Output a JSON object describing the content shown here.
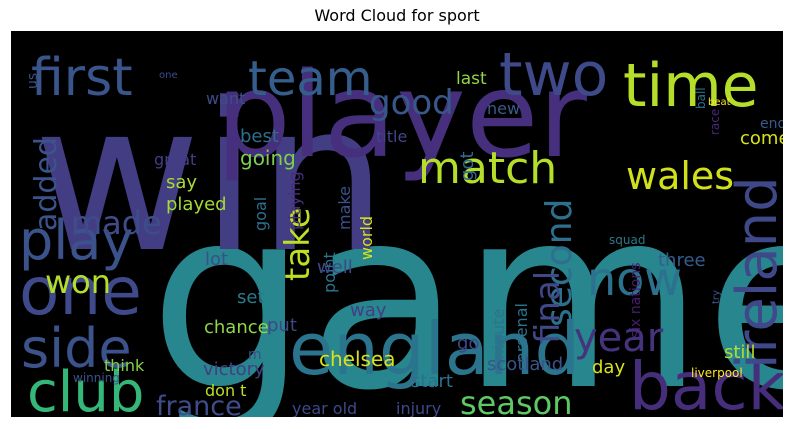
{
  "chart_data": {
    "type": "wordcloud",
    "title": "Word Cloud for sport",
    "background": "#000000",
    "words": [
      {
        "text": "game",
        "color": "#27868e"
      },
      {
        "text": "win",
        "color": "#433d84"
      },
      {
        "text": "player",
        "color": "#462f7c"
      },
      {
        "text": "england",
        "color": "#2b748e"
      },
      {
        "text": "first",
        "color": "#3a548c"
      },
      {
        "text": "team",
        "color": "#355e8d"
      },
      {
        "text": "two",
        "color": "#3e4a89"
      },
      {
        "text": "time",
        "color": "#b5de2b"
      },
      {
        "text": "one",
        "color": "#3e4a89"
      },
      {
        "text": "back",
        "color": "#472e7c"
      },
      {
        "text": "ireland",
        "color": "#3f4889"
      },
      {
        "text": "match",
        "color": "#b5de2b"
      },
      {
        "text": "wales",
        "color": "#d0e11c"
      },
      {
        "text": "club",
        "color": "#35b779"
      },
      {
        "text": "play",
        "color": "#3b528b"
      },
      {
        "text": "side",
        "color": "#3b528b"
      },
      {
        "text": "now",
        "color": "#2c728e"
      },
      {
        "text": "good",
        "color": "#38588c"
      },
      {
        "text": "year",
        "color": "#46337e"
      },
      {
        "text": "season",
        "color": "#5ec962"
      },
      {
        "text": "france",
        "color": "#3e4c8a"
      },
      {
        "text": "second",
        "color": "#2d708e"
      },
      {
        "text": "final",
        "color": "#3f4889"
      },
      {
        "text": "take",
        "color": "#bddf26"
      },
      {
        "text": "won",
        "color": "#b5de2b"
      },
      {
        "text": "made",
        "color": "#3e4c8a"
      },
      {
        "text": "added",
        "color": "#3b528b"
      },
      {
        "text": "last",
        "color": "#8fd744"
      },
      {
        "text": "end",
        "color": "#365c8d"
      },
      {
        "text": "new",
        "color": "#365c8d"
      },
      {
        "text": "want",
        "color": "#3e4c8a"
      },
      {
        "text": "best",
        "color": "#2e6f8e"
      },
      {
        "text": "going",
        "color": "#7ad151"
      },
      {
        "text": "got",
        "color": "#2f6b8e"
      },
      {
        "text": "title",
        "color": "#404688"
      },
      {
        "text": "great",
        "color": "#433e85"
      },
      {
        "text": "say",
        "color": "#a8db34"
      },
      {
        "text": "played",
        "color": "#a2da37"
      },
      {
        "text": "goal",
        "color": "#2e6e8e"
      },
      {
        "text": "playing",
        "color": "#472d7b"
      },
      {
        "text": "make",
        "color": "#3b518b"
      },
      {
        "text": "world",
        "color": "#d8e219"
      },
      {
        "text": "come",
        "color": "#d8e219"
      },
      {
        "text": "us",
        "color": "#3d4e8a"
      },
      {
        "text": "beat",
        "color": "#fde725"
      },
      {
        "text": "ball",
        "color": "#2b758e"
      },
      {
        "text": "race",
        "color": "#482979"
      },
      {
        "text": "squad",
        "color": "#2a788e"
      },
      {
        "text": "set",
        "color": "#287c8e"
      },
      {
        "text": "lot",
        "color": "#3c4f8a"
      },
      {
        "text": "point",
        "color": "#2b758e"
      },
      {
        "text": "well",
        "color": "#3e4989"
      },
      {
        "text": "three",
        "color": "#365c8d"
      },
      {
        "text": "way",
        "color": "#433e85"
      },
      {
        "text": "put",
        "color": "#3f4788"
      },
      {
        "text": "chance",
        "color": "#8fd744"
      },
      {
        "text": "minute",
        "color": "#2c738e"
      },
      {
        "text": "arsenal",
        "color": "#2c728e"
      },
      {
        "text": "six nations",
        "color": "#481f70"
      },
      {
        "text": "go",
        "color": "#3f4788"
      },
      {
        "text": "day",
        "color": "#d8e219"
      },
      {
        "text": "chelsea",
        "color": "#d8e219"
      },
      {
        "text": "start",
        "color": "#2c718e"
      },
      {
        "text": "scotland",
        "color": "#3a538b"
      },
      {
        "text": "m",
        "color": "#3e4c8a"
      },
      {
        "text": "victory",
        "color": "#433e85"
      },
      {
        "text": "don t",
        "color": "#bddf26"
      },
      {
        "text": "think",
        "color": "#84d44b"
      },
      {
        "text": "winning",
        "color": "#3b528b"
      },
      {
        "text": "still",
        "color": "#b5de2b"
      },
      {
        "text": "liverpool",
        "color": "#fde725"
      },
      {
        "text": "year old",
        "color": "#3e4989"
      },
      {
        "text": "injury",
        "color": "#3e4989"
      },
      {
        "text": "try",
        "color": "#3b528b"
      },
      {
        "text": "one",
        "color": "#3e4c8a"
      }
    ]
  }
}
